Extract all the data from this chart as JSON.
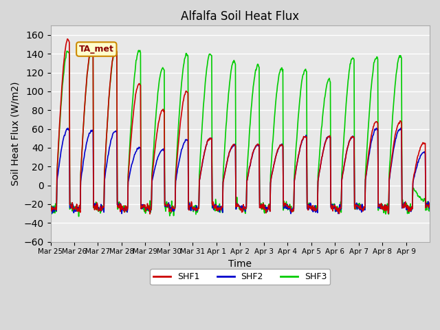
{
  "title": "Alfalfa Soil Heat Flux",
  "xlabel": "Time",
  "ylabel": "Soil Heat Flux (W/m2)",
  "ylim": [
    -60,
    170
  ],
  "yticks": [
    -60,
    -40,
    -20,
    0,
    20,
    40,
    60,
    80,
    100,
    120,
    140,
    160
  ],
  "x_tick_labels": [
    "Mar 25",
    "Mar 26",
    "Mar 27",
    "Mar 28",
    "Mar 29",
    "Mar 30",
    "Mar 31",
    "Apr 1",
    "Apr 2",
    "Apr 3",
    "Apr 4",
    "Apr 5",
    "Apr 6",
    "Apr 7",
    "Apr 8",
    "Apr 9"
  ],
  "legend_labels": [
    "SHF1",
    "SHF2",
    "SHF3"
  ],
  "annotation_text": "TA_met",
  "background_color": "#e8e8e8",
  "grid_color": "#ffffff",
  "line_colors": [
    "#cc0000",
    "#0000cc",
    "#00cc00"
  ],
  "line_width": 1.2,
  "shf1_amplitudes": [
    155,
    145,
    145,
    108,
    80,
    100,
    50,
    43,
    43,
    43,
    52,
    52,
    52,
    68,
    68,
    45
  ],
  "shf2_amplitudes": [
    60,
    58,
    58,
    40,
    38,
    48,
    50,
    43,
    43,
    43,
    52,
    52,
    52,
    60,
    60,
    35
  ],
  "shf3_amplitudes": [
    143,
    143,
    143,
    143,
    125,
    140,
    140,
    132,
    128,
    124,
    123,
    112,
    136,
    136,
    138,
    -15
  ],
  "n_days": 16,
  "n_per_day": 48
}
